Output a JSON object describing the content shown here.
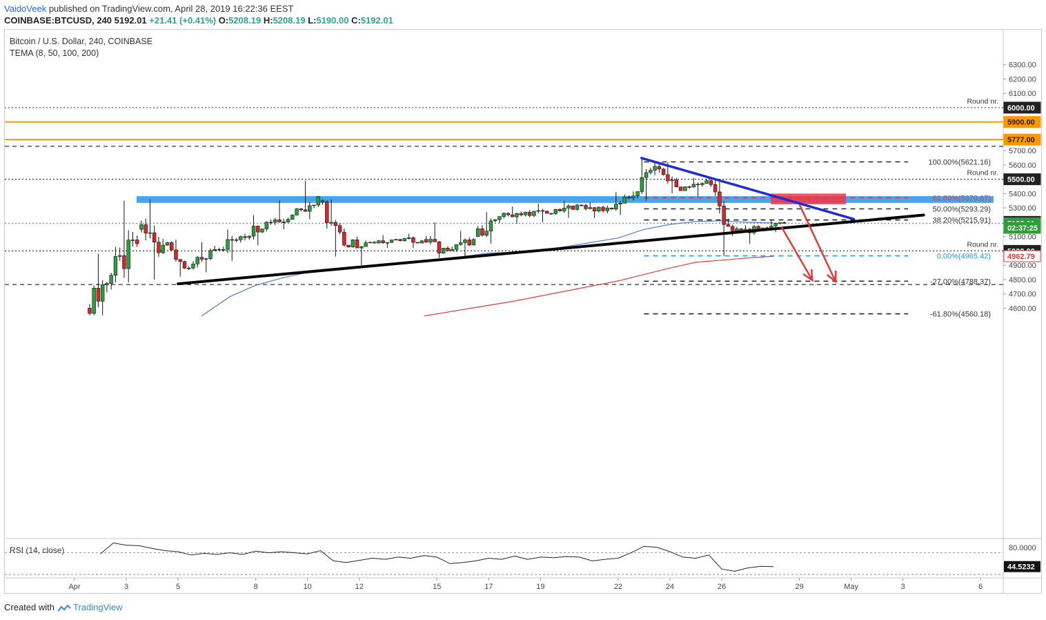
{
  "header": {
    "author": "VaidoVeek",
    "published": " published on TradingView.com, April 28, 2019 16:22:36 EEST",
    "symbol": "COINBASE:BTCUSD, 240",
    "price": "5192.01",
    "change": "+21.41 (+0.41%)",
    "o_label": "O:",
    "o": "5208.19",
    "h_label": "H:",
    "h": "5208.19",
    "l_label": "L:",
    "l": "5190.00",
    "c_label": "C:",
    "c": "5192.01"
  },
  "legend": {
    "title": "Bitcoin / U.S. Dollar, 240, COINBASE",
    "indicator": "TEMA (8, 50, 100, 200)",
    "rsi": "RSI (14, close)"
  },
  "footer": {
    "created": "Created with",
    "brand": "TradingView"
  },
  "colors": {
    "up": "#26a69a",
    "down": "#ef5350",
    "candle_up": "#2e9e3a",
    "candle_down": "#d8262b",
    "orange": "#ff9800",
    "blue_zone": "#2196f3",
    "red_zone": "#f23645",
    "trend_blue": "#1e2bd6",
    "ema_blue": "#4a7fcf",
    "ema_red": "#e53935"
  },
  "chart_data": {
    "type": "candlestick",
    "title": "Bitcoin / U.S. Dollar, 240, COINBASE",
    "ylim": [
      4545,
      6345
    ],
    "y_ticks": [
      4600,
      4700,
      4800,
      4900,
      5000,
      5100,
      5200,
      5300,
      5400,
      5500,
      5600,
      5700,
      5800,
      6000,
      6100,
      6200,
      6300
    ],
    "x_ticks": [
      {
        "label": "Apr",
        "day": 1
      },
      {
        "label": "3",
        "day": 3
      },
      {
        "label": "5",
        "day": 5
      },
      {
        "label": "8",
        "day": 8
      },
      {
        "label": "10",
        "day": 10
      },
      {
        "label": "12",
        "day": 12
      },
      {
        "label": "15",
        "day": 15
      },
      {
        "label": "17",
        "day": 17
      },
      {
        "label": "19",
        "day": 19
      },
      {
        "label": "22",
        "day": 22
      },
      {
        "label": "24",
        "day": 24
      },
      {
        "label": "26",
        "day": 26
      },
      {
        "label": "29",
        "day": 29
      },
      {
        "label": "May",
        "day": 31
      },
      {
        "label": "3",
        "day": 33
      },
      {
        "label": "6",
        "day": 36
      }
    ],
    "price_labels": [
      {
        "value": 6000,
        "text": "6000.00",
        "style": "dark"
      },
      {
        "value": 5900,
        "text": "5900.00",
        "style": "orange"
      },
      {
        "value": 5777,
        "text": "5777.00",
        "style": "orange"
      },
      {
        "value": 5500,
        "text": "5500.00",
        "style": "dark"
      },
      {
        "value": 5202.41,
        "text": "5202.41",
        "style": "dark"
      },
      {
        "value": 5192.01,
        "text": "5192.01",
        "style": "green"
      },
      {
        "value": 5161,
        "text": "02:37:25",
        "style": "green"
      },
      {
        "value": 5000,
        "text": "5000.00",
        "style": "dark"
      },
      {
        "value": 4962.79,
        "text": "4962.79",
        "style": "red"
      }
    ],
    "horizontal_levels": [
      {
        "value": 6000,
        "style": "dotted",
        "color": "#555555",
        "label": "Round nr."
      },
      {
        "value": 5900,
        "style": "solid",
        "color": "#ff9800"
      },
      {
        "value": 5777,
        "style": "solid",
        "color": "#ff9800"
      },
      {
        "value": 5730,
        "style": "dashed",
        "color": "#333333"
      },
      {
        "value": 5500,
        "style": "dotted",
        "color": "#333333",
        "label": "Round nr."
      },
      {
        "value": 5192,
        "style": "dotted",
        "color": "#26a69a"
      },
      {
        "value": 5000,
        "style": "dotted",
        "color": "#333333",
        "label": "Round nr."
      },
      {
        "value": 4765,
        "style": "dashed",
        "color": "#333333"
      }
    ],
    "fib_levels": [
      {
        "value": 5621.16,
        "label": "100.00%(5621.16)",
        "color": "#222222"
      },
      {
        "value": 5370.67,
        "label": "61.80%(5370.67)",
        "color": "#e53935"
      },
      {
        "value": 5293.29,
        "label": "50.00%(5293.29)",
        "color": "#222222"
      },
      {
        "value": 5215.91,
        "label": "38.20%(5215.91)",
        "color": "#222222"
      },
      {
        "value": 4965.42,
        "label": "0.00%(4965.42)",
        "color": "#2196f3"
      },
      {
        "value": 4788.37,
        "label": "-27.00%(4788.37)",
        "color": "#222222"
      },
      {
        "value": 4560.18,
        "label": "-61.80%(4560.18)",
        "color": "#222222"
      }
    ],
    "zones": [
      {
        "name": "resistance-zone",
        "day_from": 3.4,
        "day_to": 36.5,
        "top": 5382,
        "bottom": 5335,
        "color": "#2196f3"
      },
      {
        "name": "target-zone",
        "day_from": 27.9,
        "day_to": 30.8,
        "top": 5400,
        "bottom": 5325,
        "color": "#f23645"
      }
    ],
    "trendlines": [
      {
        "name": "support-trendline",
        "from": [
          5,
          4770
        ],
        "to": [
          33.8,
          5250
        ],
        "color": "#000000",
        "width": 4
      },
      {
        "name": "descending-trendline",
        "from": [
          22.9,
          5648
        ],
        "to": [
          31.1,
          5222
        ],
        "color": "#1e2bd6",
        "width": 3.5
      }
    ],
    "arrows": [
      {
        "from": [
          28.3,
          5170
        ],
        "to": [
          29.5,
          4795
        ]
      },
      {
        "from": [
          29.0,
          5325
        ],
        "to": [
          30.4,
          4785
        ]
      }
    ],
    "candles_daily_ohlc_approx": [
      {
        "day": 2,
        "o": 4600,
        "h": 4980,
        "l": 4550,
        "c": 4830
      },
      {
        "day": 3,
        "o": 4830,
        "h": 5350,
        "l": 4780,
        "c": 5050
      },
      {
        "day": 4,
        "o": 5150,
        "h": 5360,
        "l": 4800,
        "c": 5040
      },
      {
        "day": 5,
        "o": 5040,
        "h": 5080,
        "l": 4820,
        "c": 4880
      },
      {
        "day": 6,
        "o": 4880,
        "h": 5060,
        "l": 4850,
        "c": 5010
      },
      {
        "day": 7,
        "o": 5010,
        "h": 5150,
        "l": 4930,
        "c": 5100
      },
      {
        "day": 8,
        "o": 5100,
        "h": 5250,
        "l": 5040,
        "c": 5200
      },
      {
        "day": 9,
        "o": 5200,
        "h": 5350,
        "l": 5150,
        "c": 5250
      },
      {
        "day": 10,
        "o": 5250,
        "h": 5490,
        "l": 5220,
        "c": 5380
      },
      {
        "day": 11,
        "o": 5350,
        "h": 5360,
        "l": 4960,
        "c": 5040
      },
      {
        "day": 12,
        "o": 5040,
        "h": 5100,
        "l": 4900,
        "c": 5060
      },
      {
        "day": 13,
        "o": 5060,
        "h": 5110,
        "l": 5020,
        "c": 5080
      },
      {
        "day": 14,
        "o": 5080,
        "h": 5120,
        "l": 5020,
        "c": 5070
      },
      {
        "day": 15,
        "o": 5080,
        "h": 5200,
        "l": 4950,
        "c": 5000
      },
      {
        "day": 16,
        "o": 5000,
        "h": 5140,
        "l": 4960,
        "c": 5080
      },
      {
        "day": 17,
        "o": 5100,
        "h": 5270,
        "l": 5050,
        "c": 5240
      },
      {
        "day": 18,
        "o": 5240,
        "h": 5310,
        "l": 5190,
        "c": 5270
      },
      {
        "day": 19,
        "o": 5270,
        "h": 5330,
        "l": 5200,
        "c": 5260
      },
      {
        "day": 20,
        "o": 5260,
        "h": 5350,
        "l": 5230,
        "c": 5320
      },
      {
        "day": 21,
        "o": 5320,
        "h": 5340,
        "l": 5230,
        "c": 5280
      },
      {
        "day": 22,
        "o": 5280,
        "h": 5410,
        "l": 5250,
        "c": 5370
      },
      {
        "day": 23,
        "o": 5370,
        "h": 5640,
        "l": 5350,
        "c": 5590
      },
      {
        "day": 24,
        "o": 5590,
        "h": 5620,
        "l": 5400,
        "c": 5420
      },
      {
        "day": 25,
        "o": 5420,
        "h": 5510,
        "l": 5380,
        "c": 5490
      },
      {
        "day": 26,
        "o": 5490,
        "h": 5500,
        "l": 4965,
        "c": 5140
      },
      {
        "day": 27,
        "o": 5140,
        "h": 5180,
        "l": 5050,
        "c": 5150
      },
      {
        "day": 28,
        "o": 5150,
        "h": 5220,
        "l": 5130,
        "c": 5192
      }
    ],
    "series": [
      {
        "name": "TEMA (8, 50, 100, 200)",
        "color": "#4a7fcf",
        "x_day": [
          5.9,
          7,
          8,
          9,
          10,
          11,
          12,
          13,
          14,
          15,
          16,
          17,
          18,
          19,
          20,
          21,
          22,
          23,
          24,
          25,
          26,
          27,
          28
        ],
        "values": [
          4545,
          4680,
          4760,
          4810,
          4850,
          4870,
          4890,
          4910,
          4920,
          4940,
          4960,
          4985,
          4990,
          5005,
          5030,
          5060,
          5090,
          5150,
          5185,
          5205,
          5210,
          5200,
          5195
        ]
      },
      {
        "name": "TEMA (8, 50, 100, 200)",
        "color": "#e53935",
        "x_day": [
          14.5,
          16,
          18,
          20,
          22,
          23,
          24,
          25,
          26,
          27,
          28
        ],
        "values": [
          4545,
          4590,
          4650,
          4720,
          4790,
          4835,
          4880,
          4920,
          4935,
          4950,
          4962.79
        ]
      }
    ],
    "rsi": {
      "name": "RSI (14, close)",
      "ylim": [
        25,
        95
      ],
      "levels": [
        70,
        30
      ],
      "ticks": [
        {
          "value": 80,
          "text": "80.0000"
        }
      ],
      "last": "44.5232",
      "x_day": [
        2,
        2.5,
        3,
        3.5,
        4,
        4.5,
        5,
        5.5,
        6,
        6.5,
        7,
        7.5,
        8,
        8.5,
        9,
        9.5,
        10,
        10.5,
        11,
        11.5,
        12,
        12.5,
        13,
        13.5,
        14,
        14.5,
        15,
        15.5,
        16,
        16.5,
        17,
        17.5,
        18,
        18.5,
        19,
        19.5,
        20,
        20.5,
        21,
        21.5,
        22,
        22.5,
        23,
        23.5,
        24,
        24.5,
        25,
        25.5,
        26,
        26.5,
        27,
        27.5,
        28
      ],
      "values": [
        68,
        88,
        84,
        83,
        78,
        74,
        72,
        66,
        69,
        67,
        70,
        67,
        73,
        70,
        72,
        70,
        68,
        74,
        55,
        52,
        56,
        60,
        58,
        62,
        60,
        65,
        62,
        50,
        52,
        55,
        60,
        58,
        64,
        58,
        62,
        61,
        63,
        62,
        55,
        58,
        60,
        70,
        82,
        80,
        72,
        62,
        60,
        66,
        40,
        36,
        42,
        45,
        44.52
      ]
    }
  }
}
